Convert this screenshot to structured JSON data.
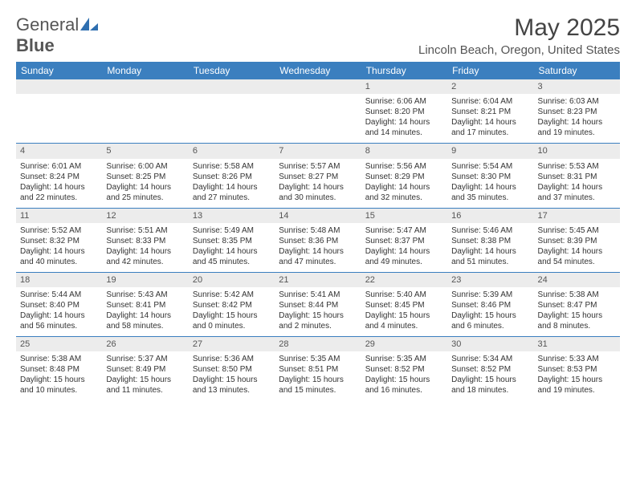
{
  "logo": {
    "word1": "General",
    "word2": "Blue",
    "icon_color": "#2f6fb0"
  },
  "title": "May 2025",
  "location": "Lincoln Beach, Oregon, United States",
  "colors": {
    "header_bg": "#3b7fbf",
    "header_text": "#ffffff",
    "num_bg": "#ececec",
    "rule": "#3b7fbf",
    "text": "#333333"
  },
  "typography": {
    "month_fontsize": 30,
    "location_fontsize": 15,
    "dayheader_fontsize": 12,
    "cell_fontsize": 10
  },
  "day_names": [
    "Sunday",
    "Monday",
    "Tuesday",
    "Wednesday",
    "Thursday",
    "Friday",
    "Saturday"
  ],
  "weeks": [
    [
      {
        "n": "",
        "sr": "",
        "ss": "",
        "d1": "",
        "d2": ""
      },
      {
        "n": "",
        "sr": "",
        "ss": "",
        "d1": "",
        "d2": ""
      },
      {
        "n": "",
        "sr": "",
        "ss": "",
        "d1": "",
        "d2": ""
      },
      {
        "n": "",
        "sr": "",
        "ss": "",
        "d1": "",
        "d2": ""
      },
      {
        "n": "1",
        "sr": "Sunrise: 6:06 AM",
        "ss": "Sunset: 8:20 PM",
        "d1": "Daylight: 14 hours",
        "d2": "and 14 minutes."
      },
      {
        "n": "2",
        "sr": "Sunrise: 6:04 AM",
        "ss": "Sunset: 8:21 PM",
        "d1": "Daylight: 14 hours",
        "d2": "and 17 minutes."
      },
      {
        "n": "3",
        "sr": "Sunrise: 6:03 AM",
        "ss": "Sunset: 8:23 PM",
        "d1": "Daylight: 14 hours",
        "d2": "and 19 minutes."
      }
    ],
    [
      {
        "n": "4",
        "sr": "Sunrise: 6:01 AM",
        "ss": "Sunset: 8:24 PM",
        "d1": "Daylight: 14 hours",
        "d2": "and 22 minutes."
      },
      {
        "n": "5",
        "sr": "Sunrise: 6:00 AM",
        "ss": "Sunset: 8:25 PM",
        "d1": "Daylight: 14 hours",
        "d2": "and 25 minutes."
      },
      {
        "n": "6",
        "sr": "Sunrise: 5:58 AM",
        "ss": "Sunset: 8:26 PM",
        "d1": "Daylight: 14 hours",
        "d2": "and 27 minutes."
      },
      {
        "n": "7",
        "sr": "Sunrise: 5:57 AM",
        "ss": "Sunset: 8:27 PM",
        "d1": "Daylight: 14 hours",
        "d2": "and 30 minutes."
      },
      {
        "n": "8",
        "sr": "Sunrise: 5:56 AM",
        "ss": "Sunset: 8:29 PM",
        "d1": "Daylight: 14 hours",
        "d2": "and 32 minutes."
      },
      {
        "n": "9",
        "sr": "Sunrise: 5:54 AM",
        "ss": "Sunset: 8:30 PM",
        "d1": "Daylight: 14 hours",
        "d2": "and 35 minutes."
      },
      {
        "n": "10",
        "sr": "Sunrise: 5:53 AM",
        "ss": "Sunset: 8:31 PM",
        "d1": "Daylight: 14 hours",
        "d2": "and 37 minutes."
      }
    ],
    [
      {
        "n": "11",
        "sr": "Sunrise: 5:52 AM",
        "ss": "Sunset: 8:32 PM",
        "d1": "Daylight: 14 hours",
        "d2": "and 40 minutes."
      },
      {
        "n": "12",
        "sr": "Sunrise: 5:51 AM",
        "ss": "Sunset: 8:33 PM",
        "d1": "Daylight: 14 hours",
        "d2": "and 42 minutes."
      },
      {
        "n": "13",
        "sr": "Sunrise: 5:49 AM",
        "ss": "Sunset: 8:35 PM",
        "d1": "Daylight: 14 hours",
        "d2": "and 45 minutes."
      },
      {
        "n": "14",
        "sr": "Sunrise: 5:48 AM",
        "ss": "Sunset: 8:36 PM",
        "d1": "Daylight: 14 hours",
        "d2": "and 47 minutes."
      },
      {
        "n": "15",
        "sr": "Sunrise: 5:47 AM",
        "ss": "Sunset: 8:37 PM",
        "d1": "Daylight: 14 hours",
        "d2": "and 49 minutes."
      },
      {
        "n": "16",
        "sr": "Sunrise: 5:46 AM",
        "ss": "Sunset: 8:38 PM",
        "d1": "Daylight: 14 hours",
        "d2": "and 51 minutes."
      },
      {
        "n": "17",
        "sr": "Sunrise: 5:45 AM",
        "ss": "Sunset: 8:39 PM",
        "d1": "Daylight: 14 hours",
        "d2": "and 54 minutes."
      }
    ],
    [
      {
        "n": "18",
        "sr": "Sunrise: 5:44 AM",
        "ss": "Sunset: 8:40 PM",
        "d1": "Daylight: 14 hours",
        "d2": "and 56 minutes."
      },
      {
        "n": "19",
        "sr": "Sunrise: 5:43 AM",
        "ss": "Sunset: 8:41 PM",
        "d1": "Daylight: 14 hours",
        "d2": "and 58 minutes."
      },
      {
        "n": "20",
        "sr": "Sunrise: 5:42 AM",
        "ss": "Sunset: 8:42 PM",
        "d1": "Daylight: 15 hours",
        "d2": "and 0 minutes."
      },
      {
        "n": "21",
        "sr": "Sunrise: 5:41 AM",
        "ss": "Sunset: 8:44 PM",
        "d1": "Daylight: 15 hours",
        "d2": "and 2 minutes."
      },
      {
        "n": "22",
        "sr": "Sunrise: 5:40 AM",
        "ss": "Sunset: 8:45 PM",
        "d1": "Daylight: 15 hours",
        "d2": "and 4 minutes."
      },
      {
        "n": "23",
        "sr": "Sunrise: 5:39 AM",
        "ss": "Sunset: 8:46 PM",
        "d1": "Daylight: 15 hours",
        "d2": "and 6 minutes."
      },
      {
        "n": "24",
        "sr": "Sunrise: 5:38 AM",
        "ss": "Sunset: 8:47 PM",
        "d1": "Daylight: 15 hours",
        "d2": "and 8 minutes."
      }
    ],
    [
      {
        "n": "25",
        "sr": "Sunrise: 5:38 AM",
        "ss": "Sunset: 8:48 PM",
        "d1": "Daylight: 15 hours",
        "d2": "and 10 minutes."
      },
      {
        "n": "26",
        "sr": "Sunrise: 5:37 AM",
        "ss": "Sunset: 8:49 PM",
        "d1": "Daylight: 15 hours",
        "d2": "and 11 minutes."
      },
      {
        "n": "27",
        "sr": "Sunrise: 5:36 AM",
        "ss": "Sunset: 8:50 PM",
        "d1": "Daylight: 15 hours",
        "d2": "and 13 minutes."
      },
      {
        "n": "28",
        "sr": "Sunrise: 5:35 AM",
        "ss": "Sunset: 8:51 PM",
        "d1": "Daylight: 15 hours",
        "d2": "and 15 minutes."
      },
      {
        "n": "29",
        "sr": "Sunrise: 5:35 AM",
        "ss": "Sunset: 8:52 PM",
        "d1": "Daylight: 15 hours",
        "d2": "and 16 minutes."
      },
      {
        "n": "30",
        "sr": "Sunrise: 5:34 AM",
        "ss": "Sunset: 8:52 PM",
        "d1": "Daylight: 15 hours",
        "d2": "and 18 minutes."
      },
      {
        "n": "31",
        "sr": "Sunrise: 5:33 AM",
        "ss": "Sunset: 8:53 PM",
        "d1": "Daylight: 15 hours",
        "d2": "and 19 minutes."
      }
    ]
  ]
}
